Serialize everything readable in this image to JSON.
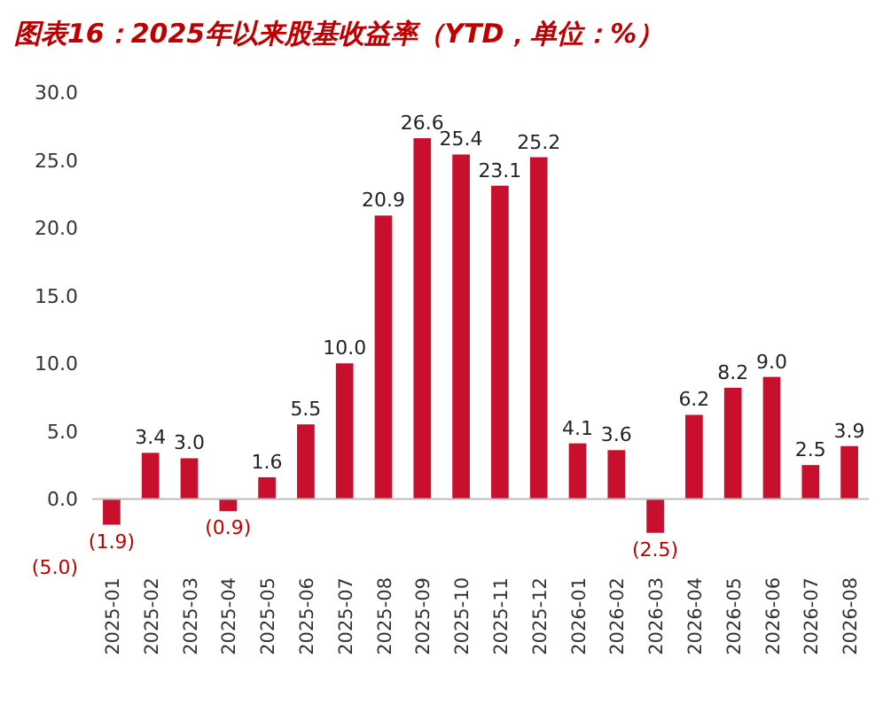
{
  "chart_data": {
    "type": "bar",
    "title": "图表16：2025年以来股基收益率（YTD，单位：%）",
    "categories": [
      "2025-01",
      "2025-02",
      "2025-03",
      "2025-04",
      "2025-05",
      "2025-06",
      "2025-07",
      "2025-08",
      "2025-09",
      "2025-10",
      "2025-11",
      "2025-12",
      "2026-01",
      "2026-02",
      "2026-03",
      "2026-04",
      "2026-05",
      "2026-06",
      "2026-07",
      "2026-08"
    ],
    "values": [
      -1.9,
      3.4,
      3.0,
      -0.9,
      1.6,
      5.5,
      10.0,
      20.9,
      26.6,
      25.4,
      23.1,
      25.2,
      4.1,
      3.6,
      -2.5,
      6.2,
      8.2,
      9.0,
      2.5,
      3.9
    ],
    "value_labels": [
      "(1.9)",
      "3.4",
      "3.0",
      "(0.9)",
      "1.6",
      "5.5",
      "10.0",
      "20.9",
      "26.6",
      "25.4",
      "23.1",
      "25.2",
      "4.1",
      "3.6",
      "(2.5)",
      "6.2",
      "8.2",
      "9.0",
      "2.5",
      "3.9"
    ],
    "color": "#c8102e",
    "ylim": [
      -5,
      30
    ],
    "yticks": [
      {
        "value": -5,
        "label": "(5.0)"
      },
      {
        "value": 0,
        "label": "0.0"
      },
      {
        "value": 5,
        "label": "5.0"
      },
      {
        "value": 10,
        "label": "10.0"
      },
      {
        "value": 15,
        "label": "15.0"
      },
      {
        "value": 20,
        "label": "20.0"
      },
      {
        "value": 25,
        "label": "25.0"
      },
      {
        "value": 30,
        "label": "30.0"
      }
    ]
  }
}
